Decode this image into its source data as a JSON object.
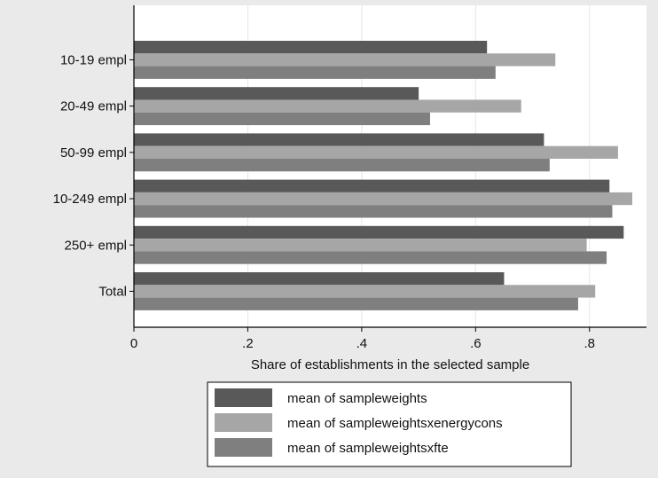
{
  "chart_data": {
    "type": "bar",
    "orientation": "horizontal",
    "categories": [
      "10-19 empl",
      "20-49 empl",
      "50-99 empl",
      "10-249 empl",
      "250+ empl",
      "Total"
    ],
    "series": [
      {
        "name": "mean of sampleweights",
        "color": "#595959",
        "values": [
          0.62,
          0.5,
          0.72,
          0.835,
          0.86,
          0.65
        ]
      },
      {
        "name": "mean of sampleweightsxenergycons",
        "color": "#a6a6a6",
        "values": [
          0.74,
          0.68,
          0.85,
          0.875,
          0.795,
          0.81
        ]
      },
      {
        "name": "mean of sampleweightsxfte",
        "color": "#7f7f7f",
        "values": [
          0.635,
          0.52,
          0.73,
          0.84,
          0.83,
          0.78
        ]
      }
    ],
    "xlabel": "Share of establishments in the selected sample",
    "ylabel": "",
    "xlim": [
      0,
      0.9
    ],
    "xticks": [
      0,
      0.2,
      0.4,
      0.6,
      0.8
    ],
    "xtick_labels": [
      "0",
      ".2",
      ".4",
      ".6",
      ".8"
    ],
    "grid": true,
    "legend_position": "bottom"
  },
  "colors": {
    "outer_background": "#eaeaea",
    "plot_background": "#ffffff",
    "grid": "#e6e6e6",
    "axis": "#000000"
  }
}
